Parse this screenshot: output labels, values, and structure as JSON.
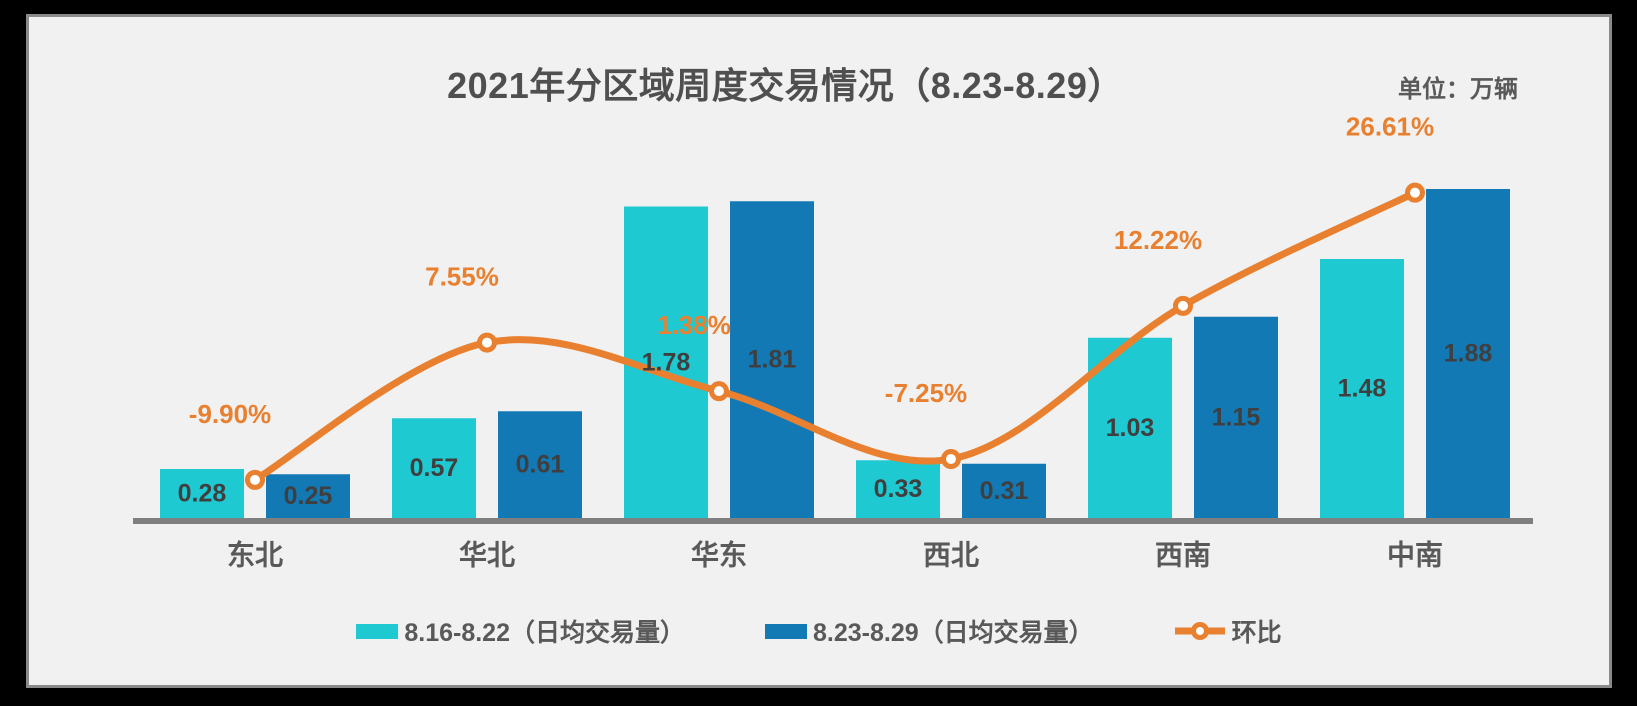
{
  "frame": {
    "background_color": "#000000"
  },
  "card": {
    "background_color": "#F1F1F1",
    "border_color": "#8A8A8A"
  },
  "header": {
    "title": "2021年分区域周度交易情况（8.23-8.29）",
    "unit_label": "单位：万辆"
  },
  "colors": {
    "series1_cyan": "#1FC9D2",
    "series2_blue": "#1379B5",
    "line_orange": "#E8802F",
    "marker_fill": "#FFFFFF",
    "axis_line": "#7F7F7F",
    "value_text": "#3F3F3F",
    "label_text": "#595959"
  },
  "legend": {
    "items": [
      {
        "label": "8.16-8.22（日均交易量）",
        "swatch_color": "#1FC9D2",
        "type": "bar"
      },
      {
        "label": "8.23-8.29（日均交易量）",
        "swatch_color": "#1379B5",
        "type": "bar"
      },
      {
        "label": "环比",
        "swatch_color": "#E8802F",
        "type": "line"
      }
    ]
  },
  "chart_data": {
    "type": "combo",
    "title": "2021年分区域周度交易情况（8.23-8.29）",
    "unit": "万辆",
    "categories": [
      "东北",
      "华北",
      "华东",
      "西北",
      "西南",
      "中南"
    ],
    "series": [
      {
        "name": "8.16-8.22（日均交易量）",
        "type": "bar",
        "color": "#1FC9D2",
        "values": [
          0.28,
          0.57,
          1.78,
          0.33,
          1.03,
          1.48
        ],
        "labels": [
          "0.28",
          "0.57",
          "1.78",
          "0.33",
          "1.03",
          "1.48"
        ]
      },
      {
        "name": "8.23-8.29（日均交易量）",
        "type": "bar",
        "color": "#1379B5",
        "values": [
          0.25,
          0.61,
          1.81,
          0.31,
          1.15,
          1.88
        ],
        "labels": [
          "0.25",
          "0.61",
          "1.81",
          "0.31",
          "1.15",
          "1.88"
        ]
      },
      {
        "name": "环比",
        "type": "line",
        "color": "#E8802F",
        "marker": "open-circle",
        "values": [
          -9.9,
          7.55,
          1.38,
          -7.25,
          12.22,
          26.61
        ],
        "labels": [
          "-9.90%",
          "7.55%",
          "1.38%",
          "-7.25%",
          "12.22%",
          "26.61%"
        ]
      }
    ],
    "bar_axis_range": [
      0,
      2.3
    ],
    "line_axis_range_pct": [
      -15,
      30
    ],
    "grid": false,
    "axes_ticks_visible": false,
    "legend_position": "bottom",
    "value_labels": "center-inside-bars",
    "line_labels": "above-points"
  }
}
